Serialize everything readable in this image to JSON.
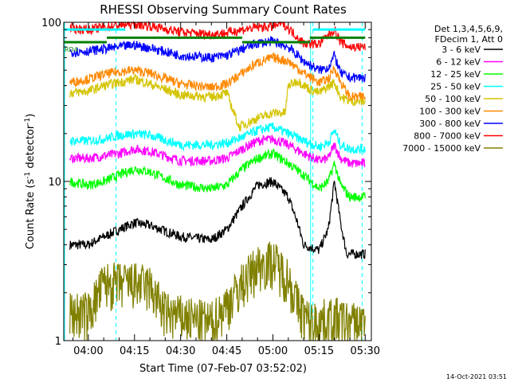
{
  "chart_data": {
    "type": "line",
    "title": "RHESSI Observing Summary Count Rates",
    "xlabel": "Start Time (07-Feb-07 03:52:02)",
    "ylabel_main": "Count Rate (s",
    "ylabel_sup1": "-1",
    "ylabel_mid": " detector",
    "ylabel_sup2": "-1",
    "ylabel_end": ")",
    "y_scale": "log",
    "ylim": [
      1,
      100
    ],
    "xlim": [
      "03:52",
      "05:32"
    ],
    "x_ticks": [
      "04:00",
      "04:15",
      "04:30",
      "04:45",
      "05:00",
      "05:15",
      "05:30"
    ],
    "y_ticks": [
      "1",
      "10",
      "100"
    ],
    "legend_placement": "right",
    "legend_header": [
      "Det 1,3,4,5,6,9,",
      "FDecim 1, Att 0"
    ],
    "series": [
      {
        "name": "3 - 6 keV",
        "color": "#000000",
        "points": [
          [
            "03:54",
            4
          ],
          [
            "04:00",
            4
          ],
          [
            "04:03",
            4.3
          ],
          [
            "04:10",
            5
          ],
          [
            "04:15",
            5.5
          ],
          [
            "04:20",
            5.3
          ],
          [
            "04:30",
            4.5
          ],
          [
            "04:40",
            4.3
          ],
          [
            "04:45",
            5
          ],
          [
            "04:50",
            7
          ],
          [
            "04:55",
            9.5
          ],
          [
            "05:00",
            10
          ],
          [
            "05:05",
            8
          ],
          [
            "05:08",
            5.5
          ],
          [
            "05:10",
            4
          ],
          [
            "05:15",
            3.7
          ],
          [
            "05:18",
            5
          ],
          [
            "05:20",
            10
          ],
          [
            "05:22",
            5.5
          ],
          [
            "05:24",
            3.5
          ],
          [
            "05:30",
            3.5
          ]
        ]
      },
      {
        "name": "6 - 12 keV",
        "color": "#ff00ff",
        "points": [
          [
            "03:54",
            14
          ],
          [
            "04:00",
            14
          ],
          [
            "04:05",
            14.5
          ],
          [
            "04:10",
            15
          ],
          [
            "04:15",
            16
          ],
          [
            "04:20",
            15.5
          ],
          [
            "04:30",
            13.5
          ],
          [
            "04:40",
            13.5
          ],
          [
            "04:45",
            14
          ],
          [
            "04:50",
            16
          ],
          [
            "04:55",
            18
          ],
          [
            "05:00",
            18.5
          ],
          [
            "05:05",
            17
          ],
          [
            "05:10",
            15
          ],
          [
            "05:15",
            13.5
          ],
          [
            "05:18",
            14
          ],
          [
            "05:20",
            17
          ],
          [
            "05:22",
            14
          ],
          [
            "05:25",
            13
          ],
          [
            "05:30",
            13
          ]
        ]
      },
      {
        "name": "12 - 25 keV",
        "color": "#00ff00",
        "points": [
          [
            "03:54",
            10
          ],
          [
            "04:00",
            9.5
          ],
          [
            "04:05",
            10
          ],
          [
            "04:10",
            11
          ],
          [
            "04:15",
            12
          ],
          [
            "04:20",
            11.5
          ],
          [
            "04:30",
            9.5
          ],
          [
            "04:40",
            9
          ],
          [
            "04:45",
            9.5
          ],
          [
            "04:50",
            12
          ],
          [
            "04:55",
            14
          ],
          [
            "05:00",
            15
          ],
          [
            "05:05",
            13
          ],
          [
            "05:10",
            11
          ],
          [
            "05:15",
            9
          ],
          [
            "05:18",
            10
          ],
          [
            "05:20",
            13
          ],
          [
            "05:22",
            9.5
          ],
          [
            "05:25",
            8
          ],
          [
            "05:30",
            8
          ]
        ]
      },
      {
        "name": "25 - 50 keV",
        "color": "#00ffff",
        "points": [
          [
            "03:54",
            18
          ],
          [
            "04:00",
            18
          ],
          [
            "04:05",
            18.5
          ],
          [
            "04:10",
            19.5
          ],
          [
            "04:15",
            20
          ],
          [
            "04:20",
            19.5
          ],
          [
            "04:30",
            17
          ],
          [
            "04:40",
            17
          ],
          [
            "04:45",
            17.5
          ],
          [
            "04:50",
            19
          ],
          [
            "04:55",
            21
          ],
          [
            "05:00",
            22
          ],
          [
            "05:05",
            20
          ],
          [
            "05:10",
            18
          ],
          [
            "05:15",
            16.5
          ],
          [
            "05:18",
            17.5
          ],
          [
            "05:20",
            21
          ],
          [
            "05:22",
            17
          ],
          [
            "05:25",
            16
          ],
          [
            "05:30",
            16
          ]
        ]
      },
      {
        "name": "50 - 100 keV",
        "color": "#d4c400",
        "points": [
          [
            "03:54",
            36
          ],
          [
            "04:00",
            37
          ],
          [
            "04:05",
            40
          ],
          [
            "04:10",
            42
          ],
          [
            "04:15",
            44
          ],
          [
            "04:20",
            41
          ],
          [
            "04:30",
            35
          ],
          [
            "04:40",
            34
          ],
          [
            "04:45",
            36
          ],
          [
            "04:49",
            22
          ],
          [
            "04:55",
            25
          ],
          [
            "05:00",
            27
          ],
          [
            "05:04",
            27
          ],
          [
            "05:05",
            40
          ],
          [
            "05:08",
            43
          ],
          [
            "05:12",
            38
          ],
          [
            "05:15",
            36
          ],
          [
            "05:20",
            42
          ],
          [
            "05:22",
            34
          ],
          [
            "05:25",
            32
          ],
          [
            "05:30",
            32
          ]
        ]
      },
      {
        "name": "100 - 300 keV",
        "color": "#ff8800",
        "points": [
          [
            "03:54",
            42
          ],
          [
            "04:00",
            44
          ],
          [
            "04:05",
            47
          ],
          [
            "04:10",
            49
          ],
          [
            "04:15",
            50
          ],
          [
            "04:20",
            48
          ],
          [
            "04:30",
            41
          ],
          [
            "04:40",
            39
          ],
          [
            "04:45",
            41
          ],
          [
            "04:50",
            48
          ],
          [
            "04:55",
            56
          ],
          [
            "05:00",
            60
          ],
          [
            "05:05",
            57
          ],
          [
            "05:10",
            48
          ],
          [
            "05:15",
            42
          ],
          [
            "05:18",
            44
          ],
          [
            "05:20",
            52
          ],
          [
            "05:22",
            42
          ],
          [
            "05:25",
            34
          ],
          [
            "05:30",
            34
          ]
        ]
      },
      {
        "name": "300 - 800 keV",
        "color": "#0000ff",
        "points": [
          [
            "03:54",
            65
          ],
          [
            "04:00",
            66
          ],
          [
            "04:05",
            68
          ],
          [
            "04:10",
            70
          ],
          [
            "04:15",
            72
          ],
          [
            "04:20",
            69
          ],
          [
            "04:30",
            62
          ],
          [
            "04:40",
            60
          ],
          [
            "04:45",
            62
          ],
          [
            "04:50",
            68
          ],
          [
            "04:55",
            74
          ],
          [
            "05:00",
            76
          ],
          [
            "05:05",
            70
          ],
          [
            "05:10",
            57
          ],
          [
            "05:15",
            50
          ],
          [
            "05:18",
            52
          ],
          [
            "05:20",
            62
          ],
          [
            "05:22",
            48
          ],
          [
            "05:25",
            45
          ],
          [
            "05:30",
            45
          ]
        ]
      },
      {
        "name": "800 - 7000 keV",
        "color": "#ff0000",
        "points": [
          [
            "03:54",
            92
          ],
          [
            "04:00",
            90
          ],
          [
            "04:05",
            93
          ],
          [
            "04:10",
            96
          ],
          [
            "04:15",
            98
          ],
          [
            "04:20",
            95
          ],
          [
            "04:30",
            87
          ],
          [
            "04:40",
            84
          ],
          [
            "04:45",
            86
          ],
          [
            "04:50",
            90
          ],
          [
            "04:55",
            93
          ],
          [
            "05:00",
            94
          ],
          [
            "05:03",
            100
          ],
          [
            "05:06",
            88
          ],
          [
            "05:10",
            74
          ],
          [
            "05:15",
            73
          ],
          [
            "05:20",
            90
          ],
          [
            "05:22",
            75
          ],
          [
            "05:25",
            70
          ],
          [
            "05:30",
            70
          ]
        ]
      },
      {
        "name": "7000 - 15000 keV",
        "color": "#808000",
        "points": [
          [
            "03:54",
            1.5
          ],
          [
            "04:00",
            1.5
          ],
          [
            "04:05",
            2.3
          ],
          [
            "04:10",
            2.3
          ],
          [
            "04:15",
            2.3
          ],
          [
            "04:20",
            2.2
          ],
          [
            "04:25",
            1.5
          ],
          [
            "04:40",
            1.3
          ],
          [
            "04:45",
            1.7
          ],
          [
            "04:50",
            2.3
          ],
          [
            "04:55",
            3
          ],
          [
            "05:00",
            3.2
          ],
          [
            "05:05",
            2.5
          ],
          [
            "05:08",
            1.7
          ],
          [
            "05:12",
            1.3
          ],
          [
            "05:20",
            1.4
          ],
          [
            "05:25",
            1.3
          ],
          [
            "05:30",
            1.3
          ]
        ]
      }
    ],
    "attenuator_flag": {
      "label": "RD4",
      "color": "#008000",
      "value_low": 75,
      "value_high": 80,
      "segments": [
        [
          "03:52",
          "04:06",
          "low"
        ],
        [
          "04:06",
          "04:50",
          "high"
        ],
        [
          "04:50",
          "05:12",
          "low"
        ],
        [
          "05:12",
          "05:30",
          "high"
        ]
      ]
    },
    "saturation_flag": {
      "color": "#00ffff",
      "value": 90,
      "segments": [
        [
          "03:52",
          "04:12"
        ],
        [
          "05:13",
          "05:30"
        ]
      ]
    },
    "vertical_markers": {
      "night": [
        "04:09",
        "05:13",
        "05:29"
      ],
      "saa": [
        "03:52",
        "05:12"
      ]
    }
  },
  "footer": {
    "timestamp": "14-Oct-2021 03:51"
  }
}
